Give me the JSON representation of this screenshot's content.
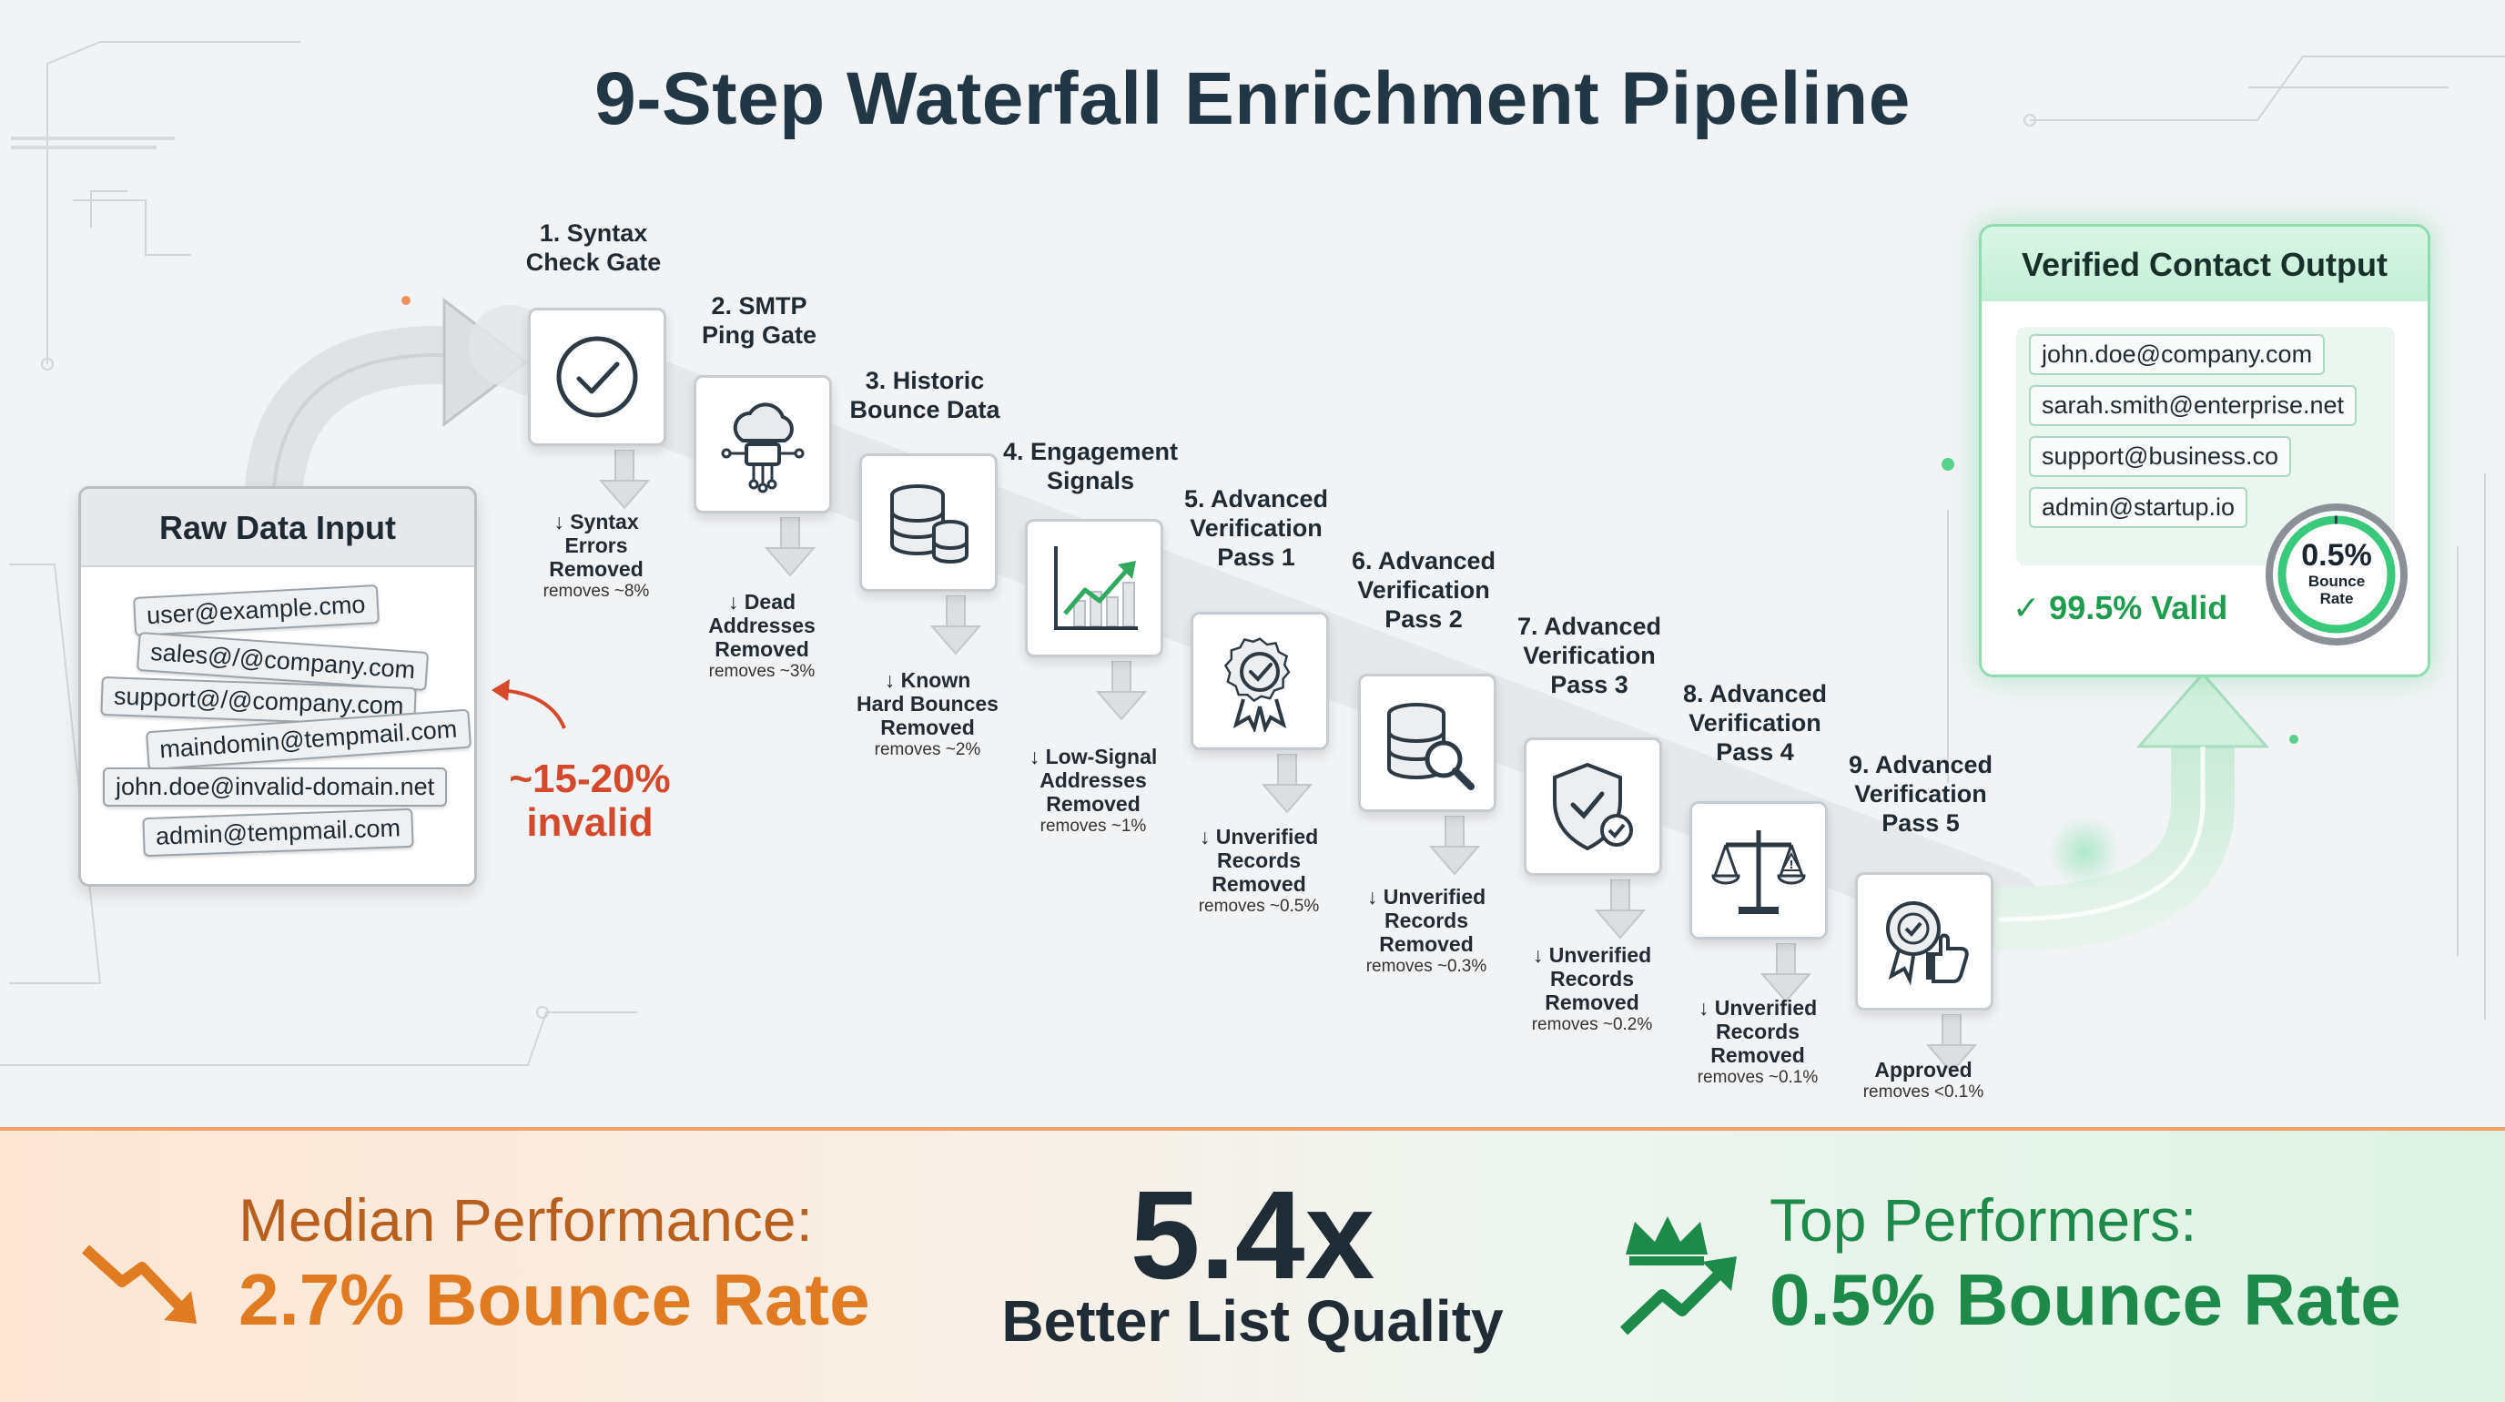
{
  "title": "9-Step Waterfall Enrichment Pipeline",
  "raw_input": {
    "title": "Raw Data Input",
    "emails": [
      "user@example.cmo",
      "sales@/@company.com",
      "support@/@company.com",
      "maindomin@tempmail.com",
      "john.doe@invalid-domain.net",
      "admin@tempmail.com"
    ],
    "invalid_line1": "~15-20%",
    "invalid_line2": "invalid"
  },
  "steps": [
    {
      "label": [
        "1. Syntax",
        "Check Gate"
      ],
      "icon": "check-circle-icon",
      "removed": [
        "↓ Syntax",
        "Errors",
        "Removed"
      ],
      "pct": "removes ~8%"
    },
    {
      "label": [
        "2. SMTP",
        "Ping Gate"
      ],
      "icon": "cloud-network-icon",
      "removed": [
        "↓ Dead",
        "Addresses",
        "Removed"
      ],
      "pct": "removes ~3%"
    },
    {
      "label": [
        "3. Historic",
        "Bounce Data"
      ],
      "icon": "database-icon",
      "removed": [
        "↓ Known",
        "Hard Bounces",
        "Removed"
      ],
      "pct": "removes ~2%"
    },
    {
      "label": [
        "4. Engagement",
        "Signals"
      ],
      "icon": "trend-chart-icon",
      "removed": [
        "↓ Low-Signal",
        "Addresses",
        "Removed"
      ],
      "pct": "removes ~1%"
    },
    {
      "label": [
        "5. Advanced",
        "Verification",
        "Pass 1"
      ],
      "icon": "award-badge-icon",
      "removed": [
        "↓ Unverified",
        "Records",
        "Removed"
      ],
      "pct": "removes ~0.5%"
    },
    {
      "label": [
        "6. Advanced",
        "Verification",
        "Pass 2"
      ],
      "icon": "database-search-icon",
      "removed": [
        "↓ Unverified",
        "Records",
        "Removed"
      ],
      "pct": "removes ~0.3%"
    },
    {
      "label": [
        "7. Advanced",
        "Verification",
        "Pass 3"
      ],
      "icon": "shield-check-icon",
      "removed": [
        "↓ Unverified",
        "Records",
        "Removed"
      ],
      "pct": "removes ~0.2%"
    },
    {
      "label": [
        "8. Advanced",
        "Verification",
        "Pass 4"
      ],
      "icon": "scale-icon",
      "removed": [
        "↓ Unverified",
        "Records",
        "Removed"
      ],
      "pct": "removes ~0.1%"
    },
    {
      "label": [
        "9. Advanced",
        "Verification",
        "Pass 5"
      ],
      "icon": "approval-badge-icon",
      "removed": [
        "Approved"
      ],
      "pct": "removes <0.1%"
    }
  ],
  "output": {
    "title": "Verified Contact Output",
    "emails": [
      "john.doe@company.com",
      "sarah.smith@enterprise.net",
      "support@business.co",
      "admin@startup.io"
    ],
    "valid": "✓ 99.5% Valid",
    "rate_value": "0.5%",
    "rate_label1": "Bounce",
    "rate_label2": "Rate"
  },
  "footer": {
    "median_label": "Median Performance:",
    "median_value": "2.7% Bounce Rate",
    "multiplier": "5.4x",
    "multiplier_label": "Better List Quality",
    "top_label": "Top Performers:",
    "top_value": "0.5% Bounce Rate"
  },
  "colors": {
    "title": "#223746",
    "invalid": "#d4492a",
    "median": "#e07b22",
    "top": "#1e8a49",
    "valid": "#1f9d4f"
  }
}
